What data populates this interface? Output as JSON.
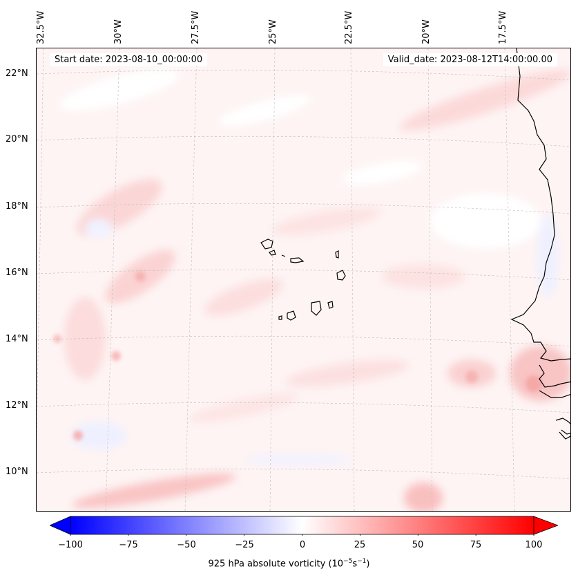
{
  "map": {
    "variable_label": "925 hPa absolute vorticity",
    "units_base": "(10",
    "units_exp1": "−5",
    "units_mid": "s",
    "units_exp2": "−1",
    "units_close": ")",
    "start_date": "Start date: 2023-08-10_00:00:00",
    "valid_date": "Valid_date: 2023-08-12T14:00:00.00",
    "longitude_labels": [
      "32.5°W",
      "30°W",
      "27.5°W",
      "25°W",
      "22.5°W",
      "20°W",
      "17.5°W"
    ],
    "latitude_labels": [
      "22°N",
      "20°N",
      "18°N",
      "16°N",
      "14°N",
      "12°N",
      "10°N"
    ],
    "colorbar": {
      "min": -100,
      "max": 100,
      "ticks": [
        "−100",
        "−75",
        "−50",
        "−25",
        "0",
        "25",
        "50",
        "75",
        "100"
      ],
      "colormap": "bwr",
      "extend": "both"
    },
    "colors": {
      "negative": "#0000ff",
      "neutral": "#ffffff",
      "positive": "#ff0000",
      "coast": "#000000",
      "grid": "#bbbbbb"
    }
  }
}
